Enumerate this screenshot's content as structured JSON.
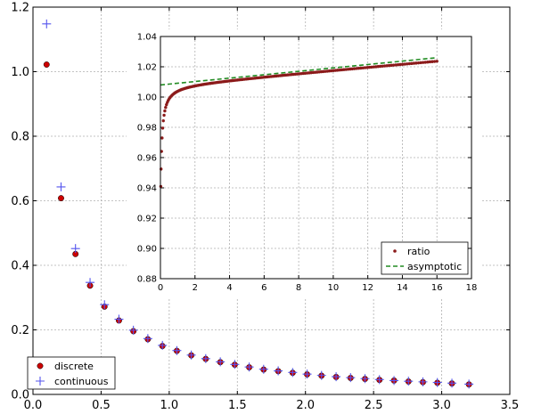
{
  "chart_data": [
    {
      "type": "scatter",
      "xlim": [
        0,
        3.5
      ],
      "ylim": [
        0,
        1.2
      ],
      "xticks": [
        "0.0",
        "0.5",
        "1.0",
        "1.5",
        "2.0",
        "2.5",
        "3.0",
        "3.5"
      ],
      "yticks": [
        "0.0",
        "0.2",
        "0.4",
        "0.6",
        "0.8",
        "1.0",
        "1.2"
      ],
      "grid": true,
      "legend_position": "lower-left",
      "series": [
        {
          "name": "discrete",
          "marker": "circle",
          "color": "#cc0000",
          "x": [
            0.1,
            0.206,
            0.312,
            0.419,
            0.525,
            0.631,
            0.737,
            0.843,
            0.95,
            1.056,
            1.162,
            1.268,
            1.375,
            1.481,
            1.587,
            1.693,
            1.8,
            1.906,
            2.012,
            2.118,
            2.225,
            2.331,
            2.437,
            2.543,
            2.65,
            2.756,
            2.862,
            2.968,
            3.075,
            3.2
          ],
          "y": [
            1.022,
            0.608,
            0.435,
            0.337,
            0.272,
            0.229,
            0.196,
            0.171,
            0.15,
            0.135,
            0.121,
            0.11,
            0.1,
            0.092,
            0.084,
            0.077,
            0.072,
            0.067,
            0.062,
            0.058,
            0.054,
            0.051,
            0.048,
            0.045,
            0.043,
            0.04,
            0.038,
            0.036,
            0.034,
            0.031
          ]
        },
        {
          "name": "continuous",
          "marker": "plus",
          "color": "#5555ee",
          "x": [
            0.1,
            0.206,
            0.312,
            0.419,
            0.525,
            0.631,
            0.737,
            0.843,
            0.95,
            1.056,
            1.162,
            1.268,
            1.375,
            1.481,
            1.587,
            1.693,
            1.8,
            1.906,
            2.012,
            2.118,
            2.225,
            2.331,
            2.437,
            2.543,
            2.65,
            2.756,
            2.862,
            2.968,
            3.075,
            3.2
          ],
          "y": [
            1.148,
            0.643,
            0.452,
            0.347,
            0.278,
            0.233,
            0.199,
            0.173,
            0.152,
            0.136,
            0.122,
            0.111,
            0.101,
            0.093,
            0.085,
            0.078,
            0.073,
            0.068,
            0.063,
            0.059,
            0.055,
            0.052,
            0.049,
            0.046,
            0.043,
            0.041,
            0.039,
            0.037,
            0.035,
            0.032
          ]
        }
      ]
    },
    {
      "type": "scatter",
      "xlim": [
        0,
        18
      ],
      "ylim": [
        0.88,
        1.04
      ],
      "xticks": [
        "0",
        "2",
        "4",
        "6",
        "8",
        "10",
        "12",
        "14",
        "16",
        "18"
      ],
      "yticks": [
        "0.88",
        "0.90",
        "0.92",
        "0.94",
        "0.96",
        "0.98",
        "1.00",
        "1.02",
        "1.04"
      ],
      "grid": true,
      "legend_position": "lower-right",
      "series": [
        {
          "name": "ratio",
          "marker": "circle",
          "color": "#8b1a1a",
          "curve": "1.008 + 0.001*x - 0.0055/(x + 0.062)",
          "x_range": [
            0.02,
            16.0
          ],
          "n_points": 161
        },
        {
          "name": "asymptotic",
          "line": "dashed",
          "color": "#228b22",
          "x": [
            0,
            16
          ],
          "y": [
            1.008,
            1.026
          ]
        }
      ]
    }
  ]
}
